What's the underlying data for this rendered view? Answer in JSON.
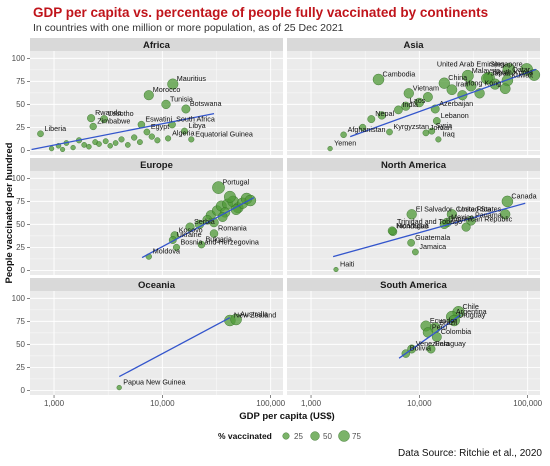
{
  "title": "GDP per capita vs. percentage of people fully vaccinated by continents",
  "subtitle": "In countries with one million or more population, as of 25 Dec 2021",
  "source": "Data Source: Ritchie et al., 2020",
  "colors": {
    "point": "#4f9a37",
    "point_stroke": "#2f6b22",
    "trend": "#3355cc",
    "panel": "#ebebeb",
    "strip": "#d9d9d9",
    "grid": "#ffffff",
    "title": "#c0141b"
  },
  "chart_data": {
    "type": "scatter",
    "facets_layout": "3 rows x 2 columns, shared axes",
    "x_scale": "log10",
    "xlabel": "GDP per capita (US$)",
    "ylabel": "People vaccinated per hundred",
    "xlim": [
      600,
      130000
    ],
    "ylim": [
      -5,
      108
    ],
    "x_ticks": [
      1000,
      10000,
      100000
    ],
    "x_tick_labels": [
      "1,000",
      "10,000",
      "100,000"
    ],
    "y_ticks": [
      0,
      25,
      50,
      75,
      100
    ],
    "y_tick_labels": [
      "0",
      "25",
      "50",
      "75",
      "100"
    ],
    "size_legend": {
      "title": "% vaccinated",
      "values": [
        25,
        50,
        75
      ],
      "labels": [
        "25",
        "50",
        "75"
      ],
      "placement": "bottom"
    },
    "facets": [
      {
        "name": "Africa",
        "trend": [
          [
            620,
            1
          ],
          [
            30000,
            40
          ]
        ],
        "points": [
          {
            "x": 12500,
            "y": 72,
            "label": "Mauritius"
          },
          {
            "x": 7500,
            "y": 60,
            "label": "Morocco"
          },
          {
            "x": 10800,
            "y": 50,
            "label": "Tunisia"
          },
          {
            "x": 16500,
            "y": 45,
            "label": "Botswana"
          },
          {
            "x": 2200,
            "y": 35,
            "label": "Rwanda"
          },
          {
            "x": 2900,
            "y": 34,
            "label": "Lesotho"
          },
          {
            "x": 2300,
            "y": 26,
            "label": "Zimbabwe"
          },
          {
            "x": 6400,
            "y": 28,
            "label": "Eswatini"
          },
          {
            "x": 12300,
            "y": 28,
            "label": "South Africa"
          },
          {
            "x": 750,
            "y": 18,
            "label": "Liberia"
          },
          {
            "x": 7200,
            "y": 20,
            "label": "Egypt"
          },
          {
            "x": 11300,
            "y": 13,
            "label": "Algeria"
          },
          {
            "x": 16000,
            "y": 21,
            "label": "Libya"
          },
          {
            "x": 18500,
            "y": 12,
            "label": "Equatorial Guinea"
          },
          {
            "x": 1100,
            "y": 5,
            "label": ""
          },
          {
            "x": 1300,
            "y": 8,
            "label": ""
          },
          {
            "x": 1500,
            "y": 3,
            "label": ""
          },
          {
            "x": 1700,
            "y": 11,
            "label": ""
          },
          {
            "x": 1900,
            "y": 6,
            "label": ""
          },
          {
            "x": 2100,
            "y": 4,
            "label": ""
          },
          {
            "x": 2400,
            "y": 9,
            "label": ""
          },
          {
            "x": 2600,
            "y": 7,
            "label": ""
          },
          {
            "x": 3000,
            "y": 10,
            "label": ""
          },
          {
            "x": 3300,
            "y": 5,
            "label": ""
          },
          {
            "x": 3700,
            "y": 8,
            "label": ""
          },
          {
            "x": 4200,
            "y": 12,
            "label": ""
          },
          {
            "x": 4800,
            "y": 6,
            "label": ""
          },
          {
            "x": 5500,
            "y": 14,
            "label": ""
          },
          {
            "x": 6200,
            "y": 9,
            "label": ""
          },
          {
            "x": 8000,
            "y": 15,
            "label": ""
          },
          {
            "x": 9000,
            "y": 11,
            "label": ""
          },
          {
            "x": 950,
            "y": 2,
            "label": ""
          },
          {
            "x": 1200,
            "y": 1,
            "label": ""
          }
        ]
      },
      {
        "name": "Asia",
        "trend": [
          [
            2300,
            15
          ],
          [
            120000,
            88
          ]
        ],
        "points": [
          {
            "x": 67000,
            "y": 88,
            "label": "United Arab Emirates"
          },
          {
            "x": 98000,
            "y": 88,
            "label": "Singapore"
          },
          {
            "x": 115000,
            "y": 82,
            "label": "Qatar"
          },
          {
            "x": 4200,
            "y": 77,
            "label": "Cambodia"
          },
          {
            "x": 28000,
            "y": 81,
            "label": "Malaysia"
          },
          {
            "x": 44000,
            "y": 79,
            "label": "South Korea"
          },
          {
            "x": 42000,
            "y": 78,
            "label": "Japan"
          },
          {
            "x": 65000,
            "y": 76,
            "label": "Kuwait"
          },
          {
            "x": 17000,
            "y": 73,
            "label": "China"
          },
          {
            "x": 62000,
            "y": 67,
            "label": "Hong Kong"
          },
          {
            "x": 8000,
            "y": 62,
            "label": "Vietnam"
          },
          {
            "x": 20000,
            "y": 66,
            "label": "Iran"
          },
          {
            "x": 7500,
            "y": 48,
            "label": "Laos"
          },
          {
            "x": 6400,
            "y": 44,
            "label": "India"
          },
          {
            "x": 14000,
            "y": 45,
            "label": "Azerbaijan"
          },
          {
            "x": 3600,
            "y": 34,
            "label": "Nepal"
          },
          {
            "x": 14500,
            "y": 32,
            "label": "Lebanon"
          },
          {
            "x": 2000,
            "y": 17,
            "label": "Afghanistan"
          },
          {
            "x": 5300,
            "y": 20,
            "label": "Kyrgyzstan"
          },
          {
            "x": 13000,
            "y": 21,
            "label": "Syria"
          },
          {
            "x": 11500,
            "y": 19,
            "label": "Jordan"
          },
          {
            "x": 15000,
            "y": 12,
            "label": "Iraq"
          },
          {
            "x": 1500,
            "y": 2,
            "label": "Yemen"
          },
          {
            "x": 10000,
            "y": 52,
            "label": ""
          },
          {
            "x": 12000,
            "y": 58,
            "label": ""
          },
          {
            "x": 25000,
            "y": 60,
            "label": ""
          },
          {
            "x": 30000,
            "y": 70,
            "label": ""
          },
          {
            "x": 36000,
            "y": 62,
            "label": ""
          },
          {
            "x": 50000,
            "y": 72,
            "label": ""
          },
          {
            "x": 4500,
            "y": 38,
            "label": ""
          },
          {
            "x": 3000,
            "y": 25,
            "label": ""
          }
        ]
      },
      {
        "name": "Europe",
        "trend": [
          [
            6500,
            14
          ],
          [
            70000,
            79
          ]
        ],
        "points": [
          {
            "x": 33000,
            "y": 90,
            "label": "Portugal"
          },
          {
            "x": 13000,
            "y": 38,
            "label": "Kosovo"
          },
          {
            "x": 18000,
            "y": 47,
            "label": "Serbia"
          },
          {
            "x": 12500,
            "y": 33,
            "label": "Ukraine"
          },
          {
            "x": 13500,
            "y": 25,
            "label": "Bosnia and Herzegovina"
          },
          {
            "x": 30000,
            "y": 40,
            "label": "Romania"
          },
          {
            "x": 7500,
            "y": 15,
            "label": "Moldova"
          },
          {
            "x": 23000,
            "y": 28,
            "label": "Bulgaria"
          },
          {
            "x": 28000,
            "y": 60,
            "label": ""
          },
          {
            "x": 32000,
            "y": 65,
            "label": ""
          },
          {
            "x": 35000,
            "y": 70,
            "label": ""
          },
          {
            "x": 40000,
            "y": 72,
            "label": ""
          },
          {
            "x": 45000,
            "y": 75,
            "label": ""
          },
          {
            "x": 50000,
            "y": 68,
            "label": ""
          },
          {
            "x": 55000,
            "y": 73,
            "label": ""
          },
          {
            "x": 60000,
            "y": 78,
            "label": ""
          },
          {
            "x": 38000,
            "y": 63,
            "label": ""
          },
          {
            "x": 26000,
            "y": 55,
            "label": ""
          },
          {
            "x": 22000,
            "y": 50,
            "label": ""
          },
          {
            "x": 42000,
            "y": 80,
            "label": ""
          },
          {
            "x": 48000,
            "y": 66,
            "label": ""
          },
          {
            "x": 65000,
            "y": 76,
            "label": ""
          },
          {
            "x": 30000,
            "y": 52,
            "label": ""
          },
          {
            "x": 36000,
            "y": 58,
            "label": ""
          }
        ]
      },
      {
        "name": "North America",
        "trend": [
          [
            1600,
            15
          ],
          [
            95000,
            73
          ]
        ],
        "points": [
          {
            "x": 65000,
            "y": 75,
            "label": "Canada"
          },
          {
            "x": 8500,
            "y": 61,
            "label": "El Salvador"
          },
          {
            "x": 20000,
            "y": 61,
            "label": "Costa Rica"
          },
          {
            "x": 62000,
            "y": 61,
            "label": "United States"
          },
          {
            "x": 18000,
            "y": 52,
            "label": "Mexico"
          },
          {
            "x": 30000,
            "y": 54,
            "label": "Panama"
          },
          {
            "x": 17000,
            "y": 50,
            "label": "Dominican Republic"
          },
          {
            "x": 27000,
            "y": 47,
            "label": "Trinidad and Tobago"
          },
          {
            "x": 5700,
            "y": 42,
            "label": "Honduras"
          },
          {
            "x": 5600,
            "y": 43,
            "label": "Nicaragua"
          },
          {
            "x": 8400,
            "y": 30,
            "label": "Guatemala"
          },
          {
            "x": 9200,
            "y": 20,
            "label": "Jamaica"
          },
          {
            "x": 1700,
            "y": 1,
            "label": "Haiti"
          }
        ]
      },
      {
        "name": "Oceania",
        "trend": [
          [
            4000,
            15
          ],
          [
            42000,
            79
          ]
        ],
        "points": [
          {
            "x": 42000,
            "y": 76,
            "label": "New Zealand"
          },
          {
            "x": 48000,
            "y": 77,
            "label": "Australia"
          },
          {
            "x": 4000,
            "y": 3,
            "label": "Papua New Guinea"
          }
        ]
      },
      {
        "name": "South America",
        "trend": [
          [
            6500,
            35
          ],
          [
            24000,
            82
          ]
        ],
        "points": [
          {
            "x": 23000,
            "y": 85,
            "label": "Chile"
          },
          {
            "x": 20000,
            "y": 80,
            "label": "Argentina"
          },
          {
            "x": 21000,
            "y": 76,
            "label": "Uruguay"
          },
          {
            "x": 11500,
            "y": 70,
            "label": "Ecuador"
          },
          {
            "x": 14000,
            "y": 68,
            "label": "Brazil"
          },
          {
            "x": 12000,
            "y": 63,
            "label": "Peru"
          },
          {
            "x": 14500,
            "y": 58,
            "label": "Colombia"
          },
          {
            "x": 12800,
            "y": 45,
            "label": "Paraguay"
          },
          {
            "x": 7500,
            "y": 40,
            "label": "Bolivia"
          },
          {
            "x": 8500,
            "y": 45,
            "label": "Venezuela"
          }
        ]
      }
    ]
  }
}
